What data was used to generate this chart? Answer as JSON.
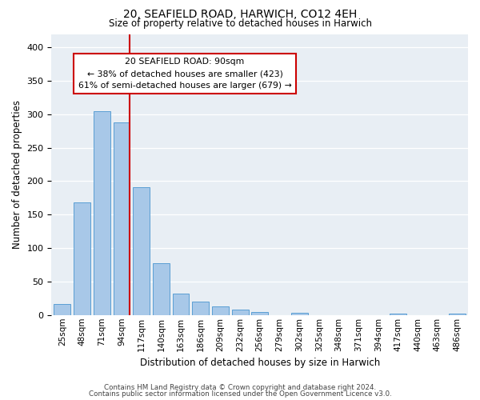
{
  "title1": "20, SEAFIELD ROAD, HARWICH, CO12 4EH",
  "title2": "Size of property relative to detached houses in Harwich",
  "xlabel": "Distribution of detached houses by size in Harwich",
  "ylabel": "Number of detached properties",
  "bar_labels": [
    "25sqm",
    "48sqm",
    "71sqm",
    "94sqm",
    "117sqm",
    "140sqm",
    "163sqm",
    "186sqm",
    "209sqm",
    "232sqm",
    "256sqm",
    "279sqm",
    "302sqm",
    "325sqm",
    "348sqm",
    "371sqm",
    "394sqm",
    "417sqm",
    "440sqm",
    "463sqm",
    "486sqm"
  ],
  "bar_heights": [
    17,
    168,
    305,
    288,
    191,
    78,
    32,
    20,
    13,
    8,
    4,
    0,
    3,
    0,
    0,
    0,
    0,
    2,
    0,
    0,
    2
  ],
  "bar_color": "#a8c8e8",
  "bar_edge_color": "#5a9fd4",
  "vline_x_idx": 3,
  "vline_color": "#cc0000",
  "ylim": [
    0,
    420
  ],
  "yticks": [
    0,
    50,
    100,
    150,
    200,
    250,
    300,
    350,
    400
  ],
  "annotation_title": "20 SEAFIELD ROAD: 90sqm",
  "annotation_line1": "← 38% of detached houses are smaller (423)",
  "annotation_line2": "61% of semi-detached houses are larger (679) →",
  "annotation_box_color": "#ffffff",
  "annotation_box_edge": "#cc0000",
  "footer1": "Contains HM Land Registry data © Crown copyright and database right 2024.",
  "footer2": "Contains public sector information licensed under the Open Government Licence v3.0.",
  "background_color": "#e8eef4"
}
